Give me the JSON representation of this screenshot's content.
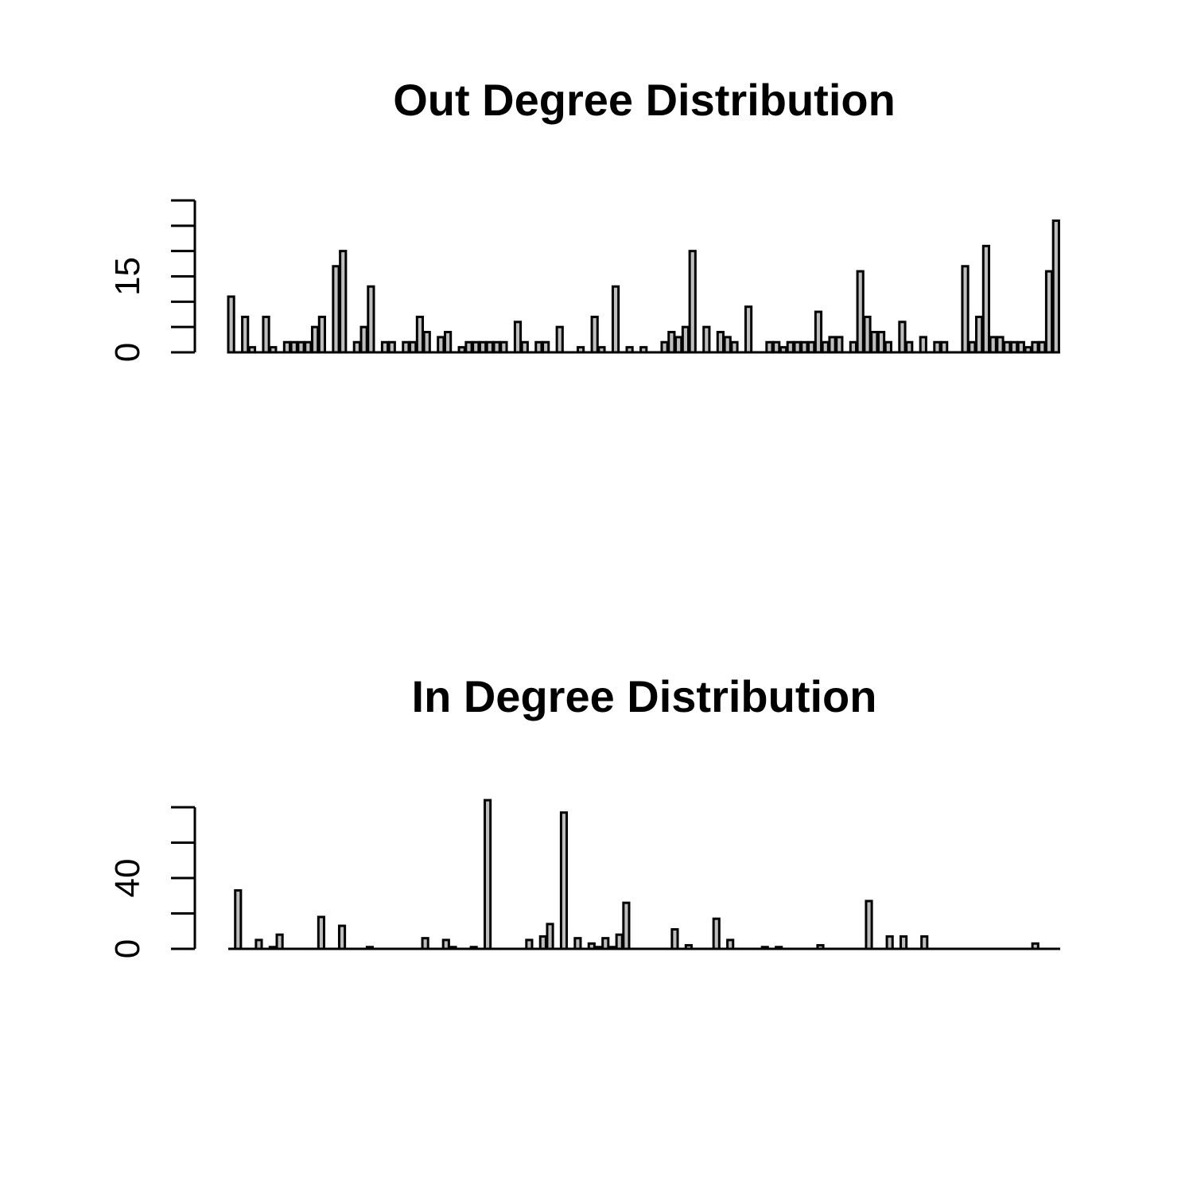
{
  "chart_data": [
    {
      "type": "bar",
      "title": "Out Degree Distribution",
      "xlabel": "",
      "ylabel": "",
      "ylim": [
        0,
        30
      ],
      "tick_values": [
        0,
        5,
        10,
        15,
        20,
        25,
        30
      ],
      "tick_labels": [
        "0",
        "",
        "",
        "15",
        "",
        "",
        ""
      ],
      "bar_color": "#bebebe",
      "values": [
        11,
        0,
        7,
        1,
        0,
        7,
        1,
        0,
        2,
        2,
        2,
        2,
        5,
        7,
        0,
        17,
        20,
        0,
        2,
        5,
        13,
        0,
        2,
        2,
        0,
        2,
        2,
        7,
        4,
        0,
        3,
        4,
        0,
        1,
        2,
        2,
        2,
        2,
        2,
        2,
        0,
        6,
        2,
        0,
        2,
        2,
        0,
        5,
        0,
        0,
        1,
        0,
        7,
        1,
        0,
        13,
        0,
        1,
        0,
        1,
        0,
        0,
        2,
        4,
        3,
        5,
        20,
        0,
        5,
        0,
        4,
        3,
        2,
        0,
        9,
        0,
        0,
        2,
        2,
        1,
        2,
        2,
        2,
        2,
        8,
        2,
        3,
        3,
        0,
        2,
        16,
        7,
        4,
        4,
        2,
        0,
        6,
        2,
        0,
        3,
        0,
        2,
        2,
        0,
        0,
        17,
        2,
        7,
        21,
        3,
        3,
        2,
        2,
        2,
        1,
        2,
        2,
        16,
        26
      ]
    },
    {
      "type": "bar",
      "title": "In Degree Distribution",
      "xlabel": "",
      "ylabel": "",
      "ylim": [
        0,
        80
      ],
      "tick_values": [
        0,
        20,
        40,
        60,
        80
      ],
      "tick_labels": [
        "0",
        "",
        "40",
        "",
        ""
      ],
      "bar_color": "#bebebe",
      "values": [
        0,
        33,
        0,
        0,
        5,
        0,
        1,
        8,
        0,
        0,
        0,
        0,
        0,
        18,
        0,
        0,
        13,
        0,
        0,
        0,
        1,
        0,
        0,
        0,
        0,
        0,
        0,
        0,
        6,
        0,
        0,
        5,
        1,
        0,
        0,
        1,
        0,
        84,
        0,
        0,
        0,
        0,
        0,
        5,
        0,
        7,
        14,
        0,
        77,
        0,
        6,
        0,
        3,
        1,
        6,
        1,
        8,
        26,
        0,
        0,
        0,
        0,
        0,
        0,
        11,
        0,
        2,
        0,
        0,
        0,
        17,
        0,
        5,
        0,
        0,
        0,
        0,
        1,
        0,
        1,
        0,
        0,
        0,
        0,
        0,
        2,
        0,
        0,
        0,
        0,
        0,
        0,
        27,
        0,
        0,
        7,
        0,
        7,
        0,
        0,
        7,
        0,
        0,
        0,
        0,
        0,
        0,
        0,
        0,
        0,
        0,
        0,
        0,
        0,
        0,
        0,
        3,
        0,
        0,
        0
      ]
    }
  ]
}
